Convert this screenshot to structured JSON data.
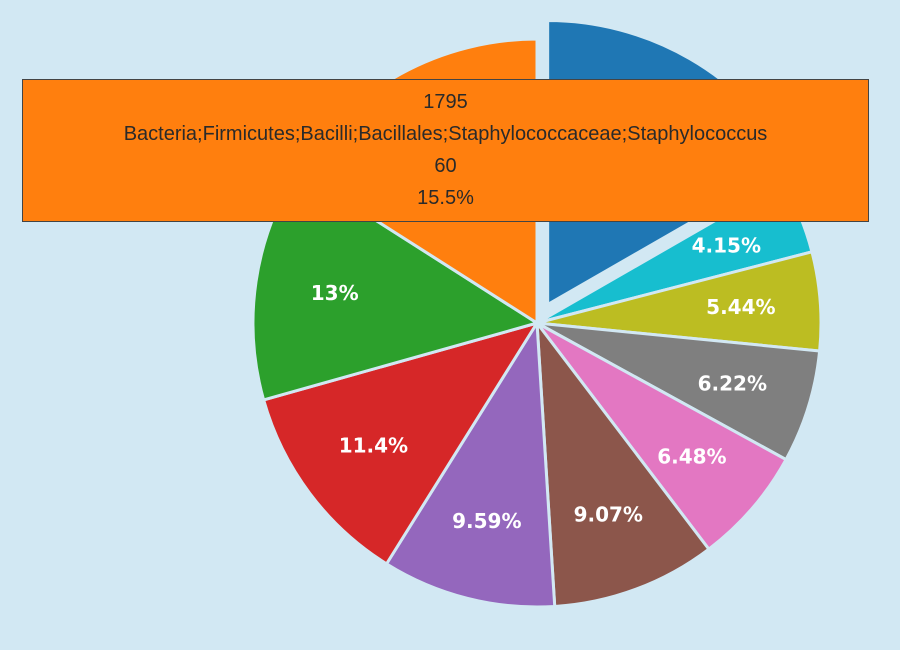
{
  "chart_data": {
    "type": "pie",
    "slices": [
      {
        "label": "",
        "percent": 16.2,
        "text": "",
        "color": "#1f77b4",
        "pulled": true
      },
      {
        "label": "",
        "percent": 4.15,
        "text": "4.15%",
        "color": "#17becf",
        "pulled": false
      },
      {
        "label": "",
        "percent": 5.44,
        "text": "5.44%",
        "color": "#bcbd22",
        "pulled": false
      },
      {
        "label": "",
        "percent": 6.22,
        "text": "6.22%",
        "color": "#7f7f7f",
        "pulled": false
      },
      {
        "label": "",
        "percent": 6.48,
        "text": "6.48%",
        "color": "#e377c2",
        "pulled": false
      },
      {
        "label": "",
        "percent": 9.07,
        "text": "9.07%",
        "color": "#8c564b",
        "pulled": false
      },
      {
        "label": "",
        "percent": 9.59,
        "text": "9.59%",
        "color": "#9467bd",
        "pulled": false
      },
      {
        "label": "",
        "percent": 11.4,
        "text": "11.4%",
        "color": "#d62728",
        "pulled": false
      },
      {
        "label": "",
        "percent": 13.0,
        "text": "13%",
        "color": "#2ca02c",
        "pulled": false
      },
      {
        "label": "Bacteria;Firmicutes;Bacilli;Bacillales;Staphylococcaceae;Staphylococcus",
        "percent": 15.5,
        "text": "",
        "color": "#ff7f0e",
        "pulled": false
      }
    ],
    "hover": {
      "id": "1795",
      "label": "Bacteria;Firmicutes;Bacilli;Bacillales;Staphylococcaceae;Staphylococcus",
      "value": "60",
      "percent": "15.5%",
      "color": "#ff7f0e"
    },
    "legend": "none",
    "slice_border_color": "#d2e8f3"
  }
}
